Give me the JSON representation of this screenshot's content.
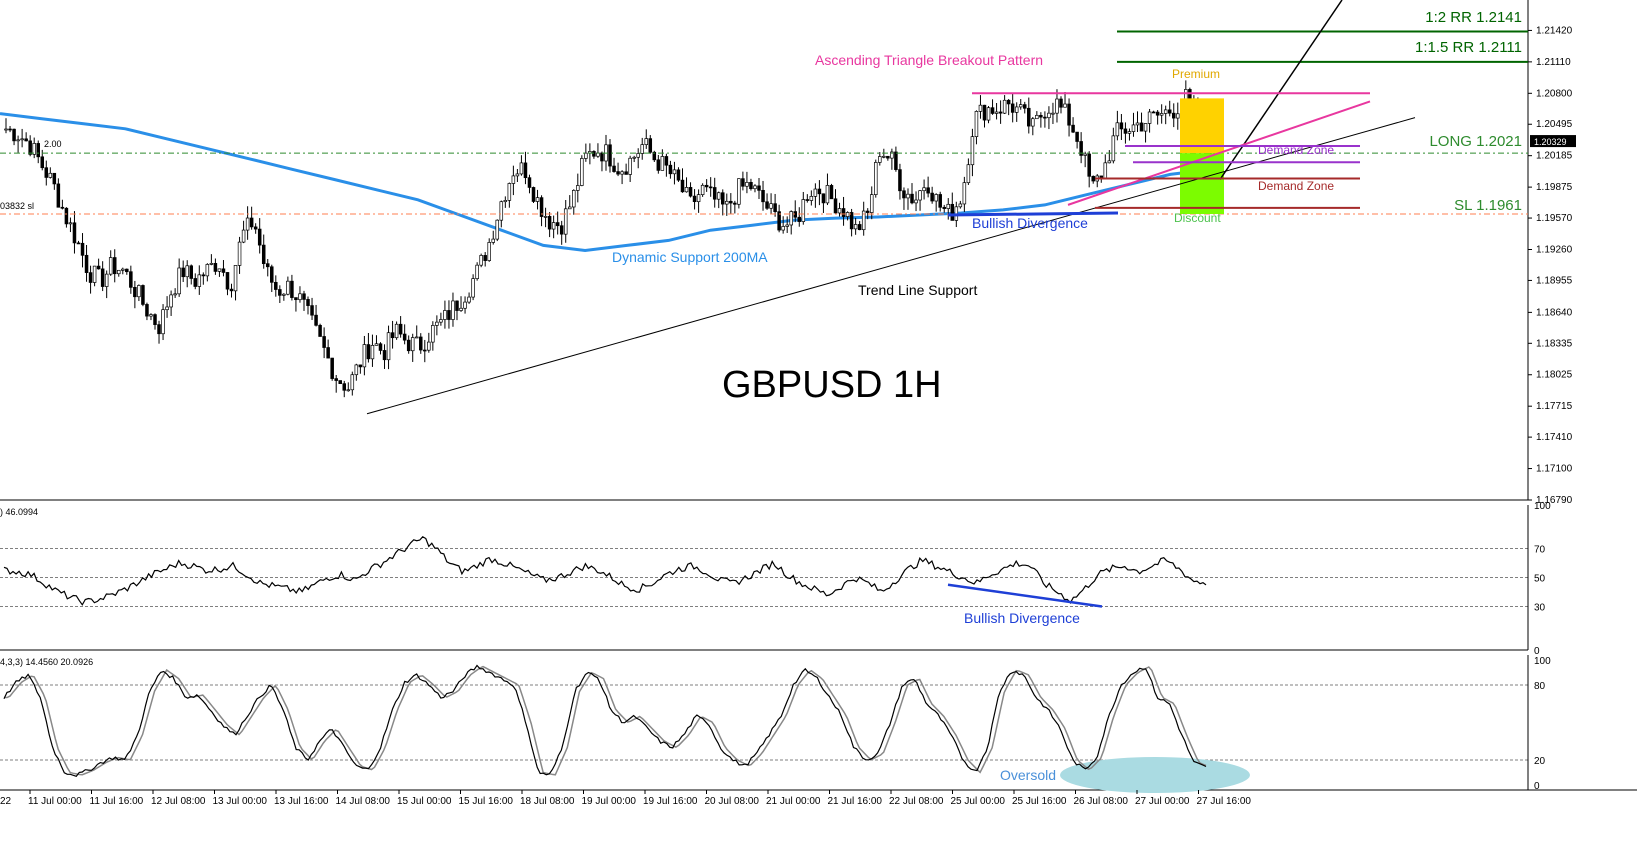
{
  "chart_data": [
    {
      "type": "candlestick",
      "title": "GBPUSD 1H",
      "price_ticks": [
        "1.21420",
        "1.21110",
        "1.20800",
        "1.20495",
        "1.20185",
        "1.19875",
        "1.19570",
        "1.19260",
        "1.18955",
        "1.18640",
        "1.18335",
        "1.18025",
        "1.17715",
        "1.17410",
        "1.17100",
        "1.16790"
      ],
      "ylim": [
        1.1679,
        1.2172
      ],
      "current_price": "1.20329",
      "time_ticks": [
        "11 Jul 00:00",
        "11 Jul 16:00",
        "12 Jul 08:00",
        "13 Jul 00:00",
        "13 Jul 16:00",
        "14 Jul 08:00",
        "15 Jul 00:00",
        "15 Jul 16:00",
        "18 Jul 08:00",
        "19 Jul 00:00",
        "19 Jul 16:00",
        "20 Jul 08:00",
        "21 Jul 00:00",
        "21 Jul 16:00",
        "22 Jul 08:00",
        "25 Jul 00:00",
        "25 Jul 16:00",
        "26 Jul 08:00",
        "27 Jul 00:00",
        "27 Jul 16:00"
      ],
      "left_edge_labels": {
        "date_fragment": "22",
        "level_fragment_1": "2.00",
        "level_fragment_2": "03832 sl"
      },
      "levels": [
        {
          "name": "rr2",
          "label": "1:2 RR 1.2141",
          "price": 1.2141,
          "color": "#006400"
        },
        {
          "name": "rr15",
          "label": "1:1.5 RR 1.2111",
          "price": 1.2111,
          "color": "#006400"
        },
        {
          "name": "long",
          "label": "LONG 1.2021",
          "price": 1.2021,
          "color": "#2e8b2e"
        },
        {
          "name": "sl",
          "label": "SL 1.1961",
          "price": 1.1961,
          "color": "#2e8b2e"
        }
      ],
      "annotations": {
        "pattern": "Ascending Triangle Breakout Pattern",
        "premium": "Premium",
        "discount": "Discount",
        "demand_zone_1": "Demand Zone",
        "demand_zone_2": "Demand Zone",
        "bullish_divergence": "Bullish Divergence",
        "dynamic_support": "Dynamic Support 200MA",
        "trend_support": "Trend Line Support"
      },
      "colors": {
        "pattern": "#e8379f",
        "ma": "#2a8fe8",
        "premium": "#ffd200",
        "discount": "#7cfc00",
        "demand_purple": "#9932cc",
        "demand_red": "#a52a2a",
        "divergence": "#1e3fd6"
      },
      "anchor_prices": [
        1.2045,
        1.204,
        1.203,
        1.201,
        1.199,
        1.196,
        1.1935,
        1.1905,
        1.1895,
        1.191,
        1.1905,
        1.1885,
        1.1865,
        1.185,
        1.1885,
        1.1905,
        1.1895,
        1.1905,
        1.1915,
        1.189,
        1.194,
        1.1955,
        1.1905,
        1.1885,
        1.189,
        1.1875,
        1.185,
        1.1825,
        1.18,
        1.179,
        1.1815,
        1.1835,
        1.1825,
        1.1845,
        1.1835,
        1.183,
        1.1845,
        1.1855,
        1.187,
        1.1885,
        1.1905,
        1.1935,
        1.1975,
        1.2005,
        1.2005,
        1.1975,
        1.1955,
        1.195,
        1.1975,
        1.2015,
        1.2025,
        1.202,
        1.2005,
        1.2015,
        1.203,
        1.2015,
        1.2005,
        1.199,
        1.197,
        1.1985,
        1.1975,
        1.1965,
        1.1985,
        1.199,
        1.1975,
        1.196,
        1.195,
        1.1955,
        1.1985,
        1.1985,
        1.1975,
        1.1965,
        1.1945,
        1.196,
        1.2025,
        1.2015,
        1.1985,
        1.1975,
        1.1995,
        1.197,
        1.196,
        1.198,
        1.2055,
        1.2065,
        1.2065,
        1.207,
        1.206,
        1.2045,
        1.2065,
        1.207,
        1.2055,
        1.203,
        1.1985,
        1.2005,
        1.204,
        1.2045,
        1.205,
        1.2055,
        1.206,
        1.2065,
        1.2075,
        1.2045,
        1.2025
      ],
      "ma_prices": [
        1.206,
        1.2055,
        1.205,
        1.2045,
        1.2035,
        1.2025,
        1.2015,
        1.2005,
        1.1995,
        1.1985,
        1.1975,
        1.196,
        1.1945,
        1.193,
        1.1925,
        1.193,
        1.1935,
        1.1945,
        1.195,
        1.1955,
        1.1957,
        1.1958,
        1.196,
        1.1962,
        1.1965,
        1.197,
        1.198,
        1.199,
        1.2,
        1.2005
      ],
      "rsi_panel": {
        "header": ") 46.0994",
        "ticks": [
          "100",
          "70",
          "50",
          "30",
          "0"
        ],
        "levels": [
          100,
          70,
          50,
          30,
          0
        ],
        "annotation": "Bullish Divergence",
        "anchors": [
          55,
          54,
          52,
          46,
          40,
          36,
          33,
          35,
          38,
          42,
          47,
          52,
          56,
          60,
          58,
          55,
          56,
          58,
          52,
          46,
          44,
          42,
          40,
          45,
          50,
          52,
          48,
          55,
          60,
          66,
          72,
          77,
          70,
          60,
          54,
          58,
          63,
          60,
          56,
          52,
          48,
          50,
          54,
          58,
          55,
          50,
          44,
          42,
          46,
          52,
          56,
          58,
          54,
          48,
          46,
          50,
          55,
          60,
          52,
          46,
          42,
          38,
          44,
          50,
          46,
          40,
          48,
          56,
          62,
          58,
          54,
          50,
          46,
          52,
          56,
          60,
          58,
          46,
          40,
          34,
          42,
          52,
          56,
          58,
          54,
          58,
          62,
          56,
          48,
          46
        ]
      },
      "stoch_panel": {
        "header": "4,3,3) 14.4560 20.0926",
        "ticks": [
          "100",
          "80",
          "20",
          "0"
        ],
        "levels": [
          100,
          80,
          20,
          0
        ],
        "annotation": "Oversold",
        "anchors": [
          70,
          82,
          88,
          70,
          30,
          10,
          8,
          12,
          18,
          22,
          20,
          40,
          75,
          92,
          85,
          70,
          72,
          60,
          48,
          40,
          55,
          70,
          80,
          60,
          30,
          20,
          35,
          45,
          30,
          15,
          12,
          30,
          60,
          82,
          88,
          80,
          70,
          75,
          88,
          95,
          90,
          85,
          80,
          50,
          10,
          8,
          30,
          75,
          90,
          85,
          60,
          50,
          55,
          45,
          35,
          30,
          40,
          55,
          50,
          30,
          20,
          15,
          25,
          40,
          55,
          80,
          92,
          85,
          70,
          55,
          30,
          20,
          25,
          50,
          80,
          85,
          65,
          55,
          40,
          20,
          10,
          30,
          75,
          92,
          88,
          70,
          60,
          45,
          20,
          12,
          22,
          55,
          80,
          90,
          95,
          70,
          65,
          40,
          18,
          14
        ]
      }
    }
  ]
}
